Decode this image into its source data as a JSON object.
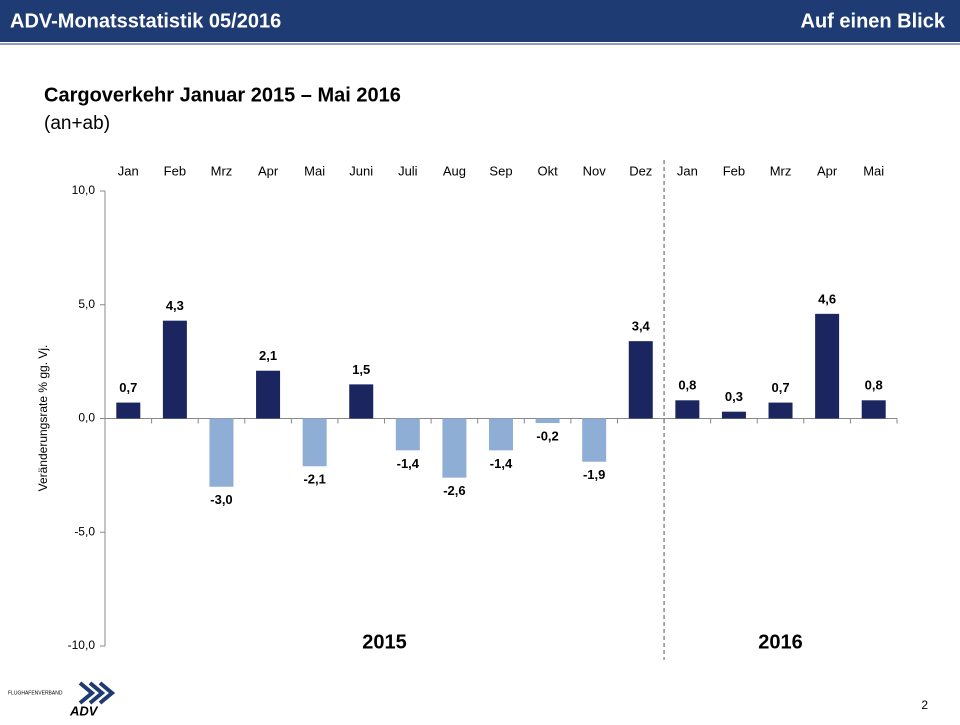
{
  "header": {
    "title": "ADV-Monatsstatistik 05/2016",
    "right": "Auf einen Blick"
  },
  "footer": {
    "page": "2",
    "logo_small": "FLUGHAFENVERBAND",
    "logo": "ADV"
  },
  "chart_data": {
    "type": "bar",
    "title": "Cargoverkehr Januar 2015 – Mai 2016",
    "subtitle": "(an+ab)",
    "y_label": "Veränderungsrate % gg. Vj.",
    "categories": [
      "Jan",
      "Feb",
      "Mrz",
      "Apr",
      "Mai",
      "Juni",
      "Juli",
      "Aug",
      "Sep",
      "Okt",
      "Nov",
      "Dez",
      "Jan",
      "Feb",
      "Mrz",
      "Apr",
      "Mai"
    ],
    "values": [
      0.7,
      4.3,
      -3.0,
      2.1,
      -2.1,
      1.5,
      -1.4,
      -2.6,
      -1.4,
      -0.2,
      -1.9,
      3.4,
      0.8,
      0.3,
      0.7,
      4.6,
      0.8
    ],
    "value_labels": [
      "0,7",
      "4,3",
      "-3,0",
      "2,1",
      "-2,1",
      "1,5",
      "-1,4",
      "-2,6",
      "-1,4",
      "-0,2",
      "-1,9",
      "3,4",
      "0,8",
      "0,3",
      "0,7",
      "4,6",
      "0,8"
    ],
    "positive_color": "#1b2660",
    "negative_color": "#8eaed6",
    "groups": [
      {
        "label": "2015",
        "span": 12
      },
      {
        "label": "2016",
        "span": 5
      }
    ],
    "ylim": [
      -10,
      10
    ],
    "yticks": [
      {
        "value": -10,
        "label": "-10,0"
      },
      {
        "value": -5,
        "label": "-5,0"
      },
      {
        "value": 0,
        "label": "0,0"
      },
      {
        "value": 5,
        "label": "5,0"
      },
      {
        "value": 10,
        "label": "10,0"
      }
    ]
  }
}
